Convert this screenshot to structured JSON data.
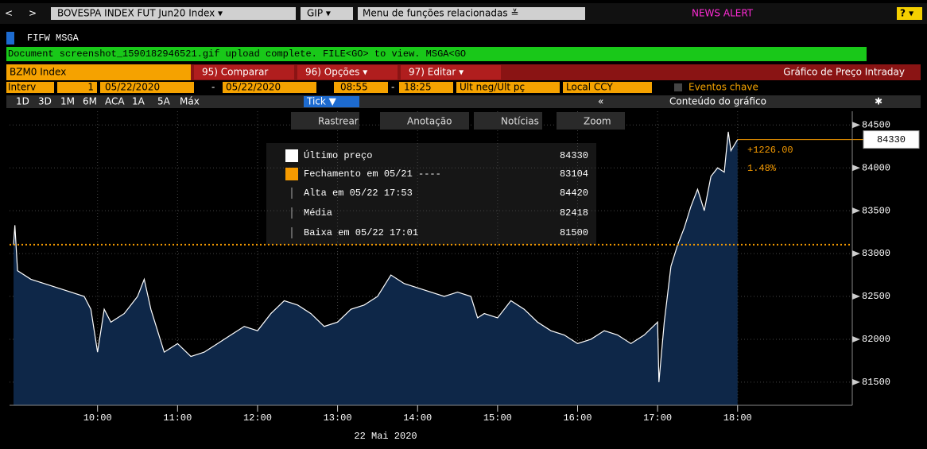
{
  "toolbar": {
    "back": "<",
    "forward": ">",
    "security_menu": "BOVESPA INDEX FUT Jun20 Index ▾",
    "gip": "GIP ▾",
    "related": "Menu de funções relacionadas ≚",
    "news": "NEWS ALERT",
    "help": "? ▾"
  },
  "command": "FIFW MSGA",
  "message": "Document screenshot_1590182946521.gif upload complete. FILE<GO> to view. MSGA<GO",
  "header": {
    "security": "BZM0 Index",
    "menus": [
      "95) Comparar",
      "96) Opções ▾",
      "97) Editar ▾"
    ],
    "title": "Gráfico de Preço Intraday"
  },
  "params": {
    "interval_label": "Interv",
    "interval": "1",
    "start_date": "05/22/2020",
    "separator": "-",
    "end_date": "05/22/2020",
    "start_time": "08:55",
    "end_time": "18:25",
    "field": "Últ neg/Últ pç",
    "currency": "Local CCY",
    "events": "Eventos chave"
  },
  "ranges": [
    "1D",
    "3D",
    "1M",
    "6M",
    "ACA",
    "1A",
    "5A",
    "Máx",
    "Tick ▼"
  ],
  "collapse": "«",
  "chart_contents": "Conteúdo do gráfico",
  "tools": [
    "Rastrear",
    "Anotação",
    "Notícias",
    "Zoom"
  ],
  "chart_data": {
    "type": "line",
    "color": "#ffffff",
    "fill_color": "#0e2748",
    "reference_color": "#f59a00",
    "x": [
      "08:57",
      "08:58",
      "09:00",
      "09:10",
      "09:20",
      "09:30",
      "09:40",
      "09:50",
      "09:55",
      "10:00",
      "10:05",
      "10:10",
      "10:20",
      "10:30",
      "10:35",
      "10:40",
      "10:45",
      "10:50",
      "11:00",
      "11:10",
      "11:20",
      "11:30",
      "11:40",
      "11:50",
      "12:00",
      "12:10",
      "12:20",
      "12:30",
      "12:40",
      "12:50",
      "13:00",
      "13:10",
      "13:20",
      "13:30",
      "13:40",
      "13:50",
      "14:00",
      "14:10",
      "14:20",
      "14:30",
      "14:40",
      "14:45",
      "14:50",
      "15:00",
      "15:10",
      "15:20",
      "15:30",
      "15:40",
      "15:50",
      "16:00",
      "16:10",
      "16:20",
      "16:30",
      "16:40",
      "16:50",
      "17:00",
      "17:01",
      "17:05",
      "17:10",
      "17:15",
      "17:20",
      "17:25",
      "17:30",
      "17:35",
      "17:40",
      "17:45",
      "17:50",
      "17:53",
      "17:55",
      "18:00"
    ],
    "values": [
      83100,
      83330,
      82800,
      82700,
      82650,
      82600,
      82550,
      82500,
      82350,
      81850,
      82350,
      82200,
      82300,
      82500,
      82700,
      82350,
      82100,
      81850,
      81950,
      81800,
      81850,
      81950,
      82050,
      82150,
      82100,
      82300,
      82450,
      82400,
      82300,
      82150,
      82200,
      82350,
      82400,
      82500,
      82750,
      82650,
      82600,
      82550,
      82500,
      82550,
      82500,
      82250,
      82300,
      82250,
      82450,
      82350,
      82200,
      82100,
      82050,
      81950,
      82000,
      82100,
      82050,
      81950,
      82050,
      82200,
      81500,
      82200,
      82850,
      83100,
      83300,
      83550,
      83750,
      83500,
      83900,
      84000,
      83950,
      84420,
      84200,
      84330
    ],
    "xlim": [
      "08:54",
      "19:26"
    ],
    "xticks": [
      "10:00",
      "11:00",
      "12:00",
      "13:00",
      "14:00",
      "15:00",
      "16:00",
      "17:00",
      "18:00"
    ],
    "ylim": [
      81230,
      84660
    ],
    "yticks": [
      81500,
      82000,
      82500,
      83000,
      83500,
      84000,
      84500
    ],
    "grid": true,
    "x_label": "22 Mai 2020",
    "legend": [
      {
        "label": "Último preço",
        "value": 84330
      },
      {
        "label": "Fechamento em 05/21 ----",
        "value": 83104
      },
      {
        "label": "Alta em 05/22 17:53",
        "value": 84420
      },
      {
        "label": "Média",
        "value": 82418
      },
      {
        "label": "Baixa em 05/22 17:01",
        "value": 81500
      }
    ],
    "last_change": "+1226.00",
    "last_change_pct": "1.48%"
  }
}
